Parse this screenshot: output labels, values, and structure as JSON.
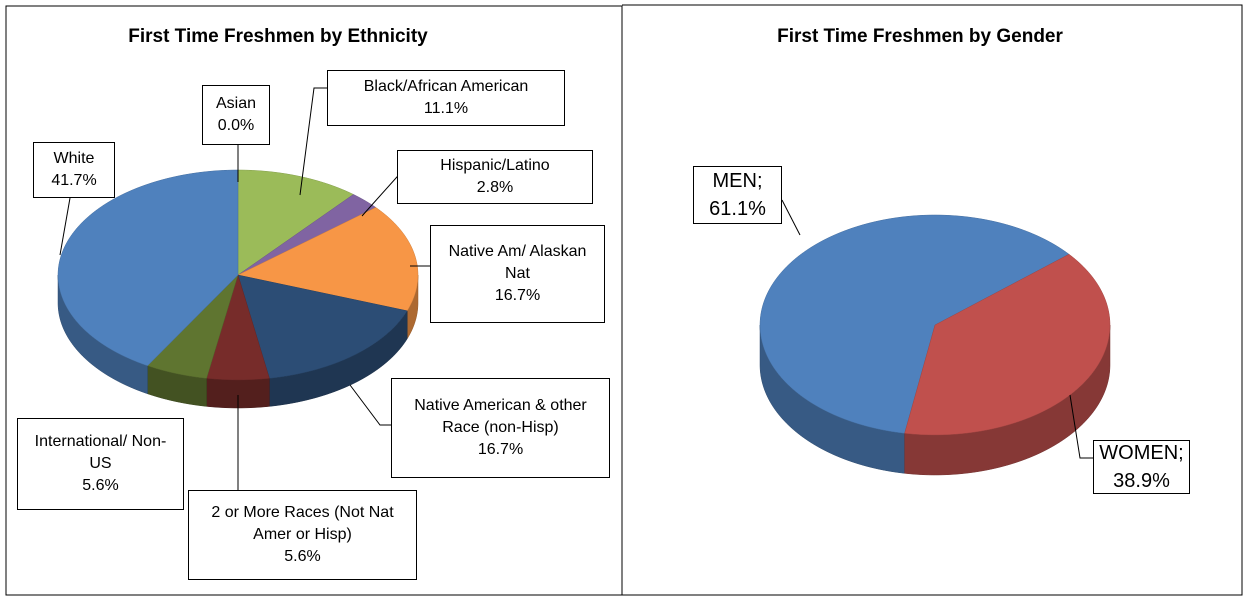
{
  "chart_data": [
    {
      "type": "pie3d",
      "title": "First Time Freshmen by Ethnicity",
      "categories": [
        "Asian",
        "Black/African American",
        "Hispanic/Latino",
        "Native Am/ Alaskan Nat",
        "Native American & other Race (non-Hisp)",
        "2 or More Races (Not Nat Amer or Hisp)",
        "International/ Non-US",
        "White"
      ],
      "values": [
        0.0,
        11.1,
        2.8,
        16.7,
        16.7,
        5.6,
        5.6,
        41.7
      ],
      "value_labels": [
        "0.0%",
        "11.1%",
        "2.8%",
        "16.7%",
        "16.7%",
        "5.6%",
        "5.6%",
        "41.7%"
      ],
      "colors": [
        "#c0504d",
        "#9bbb59",
        "#8064a2",
        "#f79646",
        "#2c4d75",
        "#772c2a",
        "#5f7530",
        "#4f81bd"
      ]
    },
    {
      "type": "pie3d",
      "title": "First Time Freshmen by Gender",
      "categories": [
        "MEN;",
        "WOMEN;"
      ],
      "values": [
        61.1,
        38.9
      ],
      "value_labels": [
        "61.1%",
        "38.9%"
      ],
      "colors": [
        "#4f81bd",
        "#c0504d"
      ]
    }
  ]
}
